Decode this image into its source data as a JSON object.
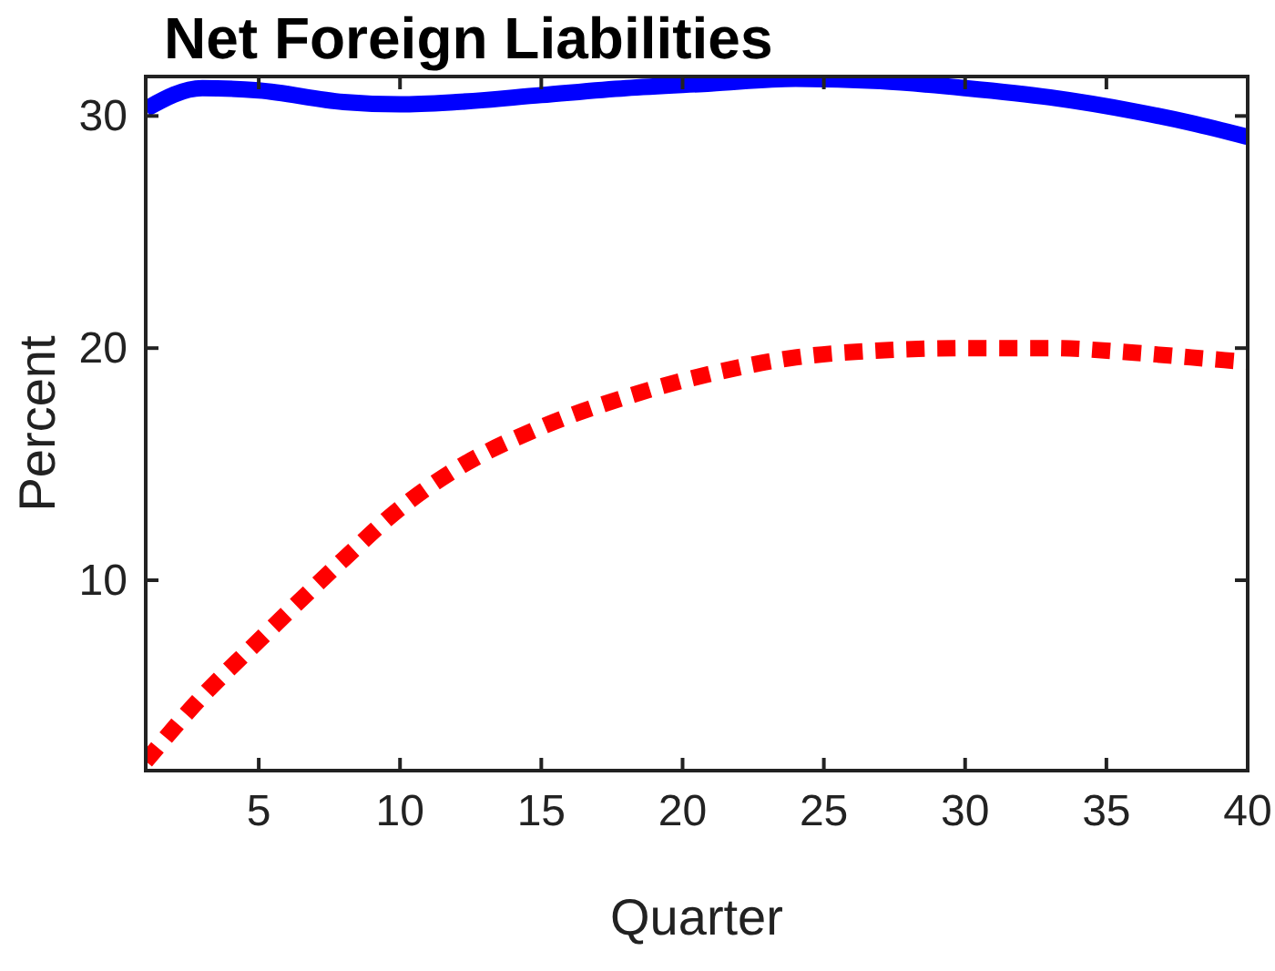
{
  "chart_data": {
    "type": "line",
    "title": "Net Foreign Liabilities",
    "xlabel": "Quarter",
    "ylabel": "Percent",
    "x": [
      1,
      3,
      5,
      8,
      10,
      12,
      15,
      18,
      21,
      24,
      27,
      30,
      33,
      36,
      38,
      40
    ],
    "xlim": [
      1,
      40
    ],
    "ylim": [
      1.8,
      31.7
    ],
    "xticks": [
      5,
      10,
      15,
      20,
      25,
      30,
      35,
      40
    ],
    "yticks": [
      10,
      20,
      30
    ],
    "grid": false,
    "series": [
      {
        "color": "#0000ff",
        "line_style": "solid",
        "values": [
          30.3,
          31.2,
          31.1,
          30.6,
          30.5,
          30.6,
          30.9,
          31.2,
          31.4,
          31.6,
          31.5,
          31.2,
          30.8,
          30.2,
          29.7,
          29.1
        ]
      },
      {
        "color": "#ff0000",
        "line_style": "dashed",
        "values": [
          2.2,
          5.0,
          7.4,
          10.9,
          13.1,
          14.8,
          16.6,
          17.9,
          18.9,
          19.6,
          19.9,
          20.0,
          20.0,
          19.8,
          19.6,
          19.4
        ]
      }
    ]
  }
}
